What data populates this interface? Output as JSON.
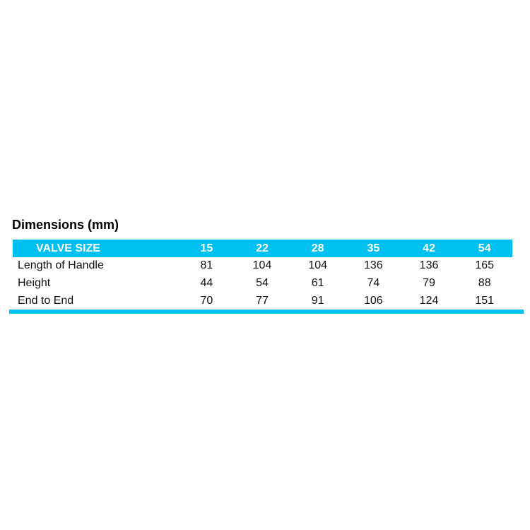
{
  "title": "Dimensions (mm)",
  "table": {
    "header": {
      "label": "VALVE SIZE",
      "sizes": [
        "15",
        "22",
        "28",
        "35",
        "42",
        "54"
      ]
    },
    "rows": [
      {
        "label": "Length of Handle",
        "values": [
          "81",
          "104",
          "104",
          "136",
          "136",
          "165"
        ]
      },
      {
        "label": "Height",
        "values": [
          "44",
          "54",
          "61",
          "74",
          "79",
          "88"
        ]
      },
      {
        "label": "End to End",
        "values": [
          "70",
          "77",
          "91",
          "106",
          "124",
          "151"
        ]
      }
    ]
  },
  "colors": {
    "accent": "#00c0f0",
    "header_text": "#ffffff",
    "body_text": "#111111",
    "title_text": "#000000",
    "background": "#ffffff"
  }
}
